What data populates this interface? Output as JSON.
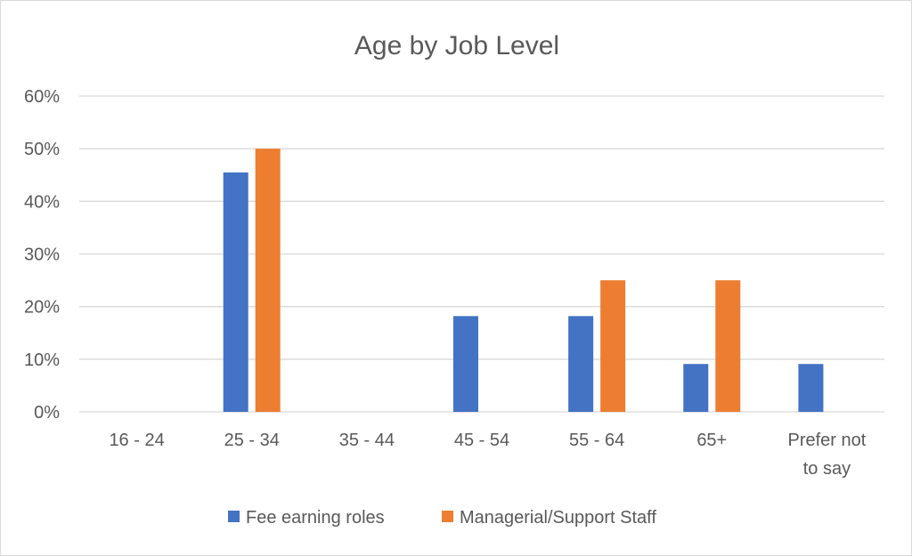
{
  "chart_data": {
    "type": "bar",
    "title": "Age by Job Level",
    "xlabel": "",
    "ylabel": "",
    "categories": [
      "16 - 24",
      "25 - 34",
      "35 - 44",
      "45 - 54",
      "55 - 64",
      "65+",
      "Prefer not to say"
    ],
    "series": [
      {
        "name": "Fee earning roles",
        "color": "#4472c4",
        "values": [
          0,
          45.5,
          0,
          18.2,
          18.2,
          9.1,
          9.1
        ]
      },
      {
        "name": "Managerial/Support Staff",
        "color": "#ed7d31",
        "values": [
          0,
          50,
          0,
          0,
          25,
          25,
          0
        ]
      }
    ],
    "ylim": [
      0,
      60
    ],
    "yticks": [
      0,
      10,
      20,
      30,
      40,
      50,
      60
    ],
    "ytick_labels": [
      "0%",
      "10%",
      "20%",
      "30%",
      "40%",
      "50%",
      "60%"
    ],
    "grid": true,
    "legend_position": "bottom"
  }
}
